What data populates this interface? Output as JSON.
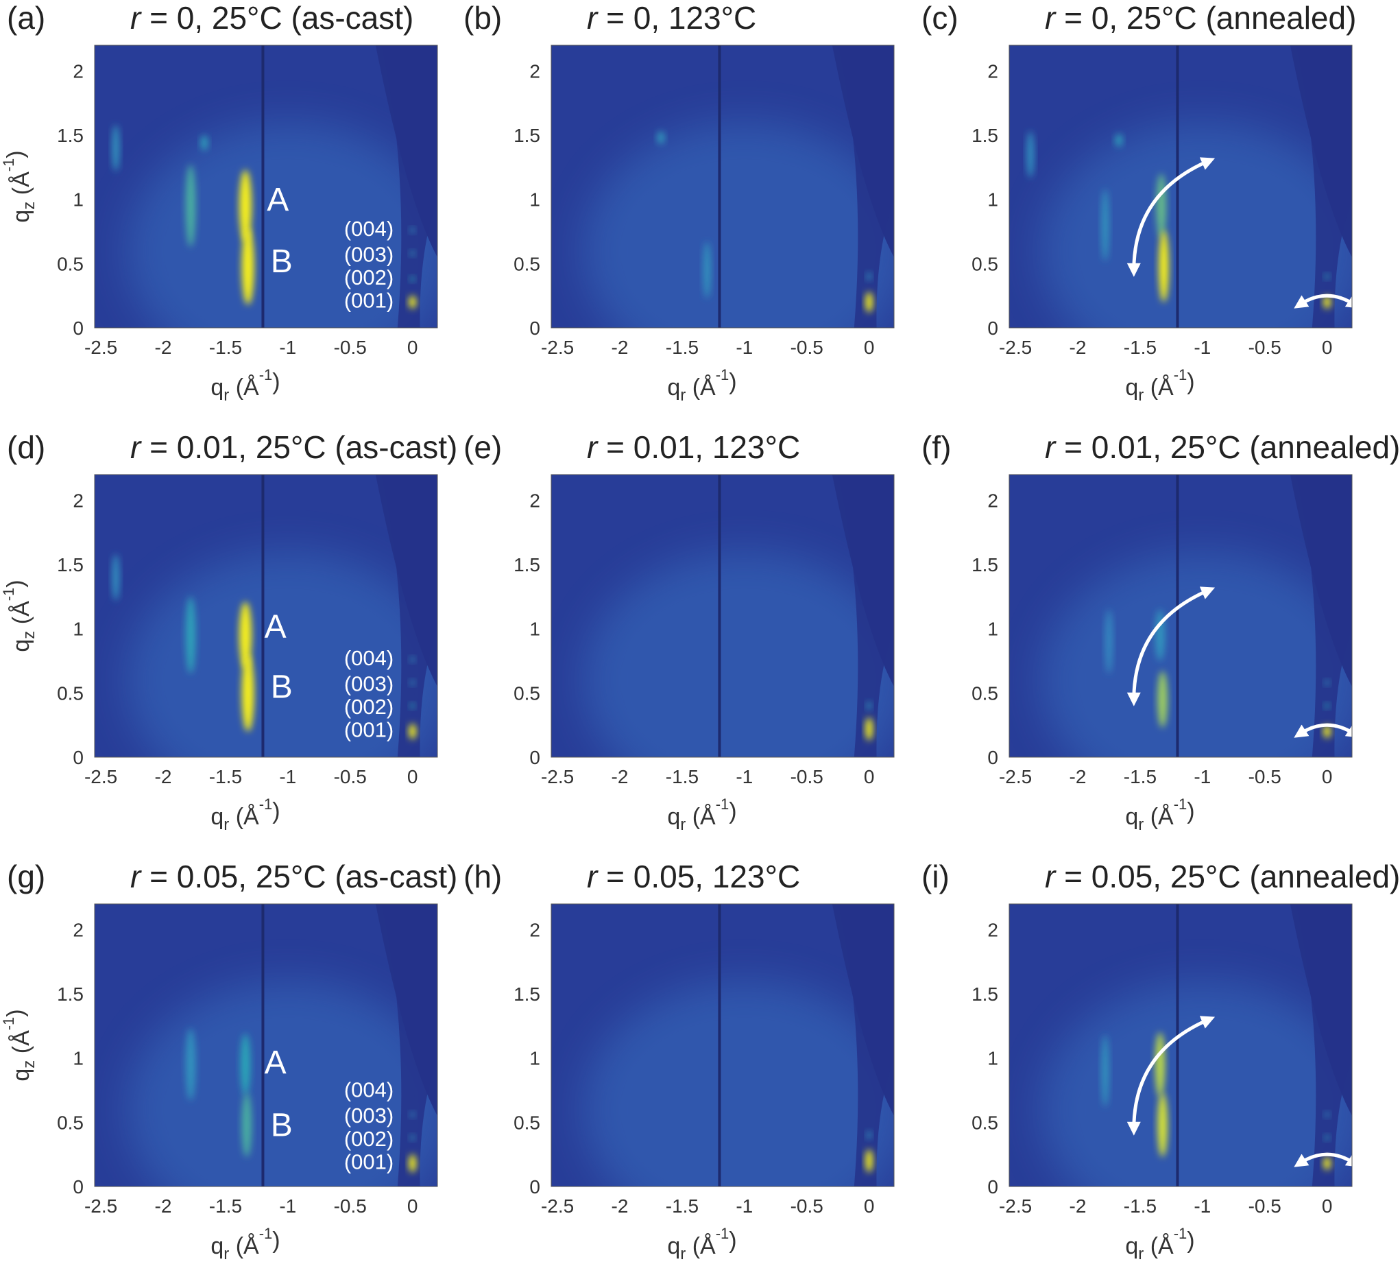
{
  "colors": {
    "background": "#283d98",
    "dark_region": "#24338a",
    "grid_line": "#1d2a6e",
    "low_intensity": "#3b78c8",
    "mid_intensity": "#2ba5b7",
    "high_intensity": "#f5ee1e",
    "annotation": "#ffffff"
  },
  "chart_data": [
    {
      "id": "a",
      "panel_label": "(a)",
      "title_var": "r",
      "title_rest": " = 0, 25°C (as-cast)",
      "type": "heatmap",
      "colormap": "viridis",
      "xlabel_base": "q",
      "xlabel_sub": "r",
      "xlabel_unit_open": " (Å",
      "xlabel_sup": "-1",
      "xlabel_unit_close": ")",
      "ylabel_base": "q",
      "ylabel_sub": "z",
      "ylabel_unit_open": " (Å",
      "ylabel_sup": "-1",
      "ylabel_unit_close": ")",
      "xlim": [
        -2.55,
        0.2
      ],
      "ylim": [
        0,
        2.2
      ],
      "xticks": [
        "-2.5",
        "-2",
        "-1.5",
        "-1",
        "-0.5",
        "0"
      ],
      "yticks": [
        "0",
        "0.5",
        "1",
        "1.5",
        "2"
      ],
      "peaks": [
        {
          "x": -1.78,
          "y": 0.95,
          "intensity": 0.55,
          "rx": 0.04,
          "ry": 0.32
        },
        {
          "x": -1.34,
          "y": 0.95,
          "intensity": 1.0,
          "rx": 0.05,
          "ry": 0.28
        },
        {
          "x": -1.32,
          "y": 0.48,
          "intensity": 1.0,
          "rx": 0.05,
          "ry": 0.3
        },
        {
          "x": -2.38,
          "y": 1.4,
          "intensity": 0.3,
          "rx": 0.03,
          "ry": 0.18
        },
        {
          "x": -1.67,
          "y": 1.44,
          "intensity": 0.4,
          "rx": 0.03,
          "ry": 0.06
        },
        {
          "x": 0,
          "y": 0.2,
          "intensity": 1.0,
          "rx": 0.03,
          "ry": 0.05
        },
        {
          "x": 0,
          "y": 0.38,
          "intensity": 0.5,
          "rx": 0.02,
          "ry": 0.02
        },
        {
          "x": 0,
          "y": 0.58,
          "intensity": 0.35,
          "rx": 0.02,
          "ry": 0.02
        },
        {
          "x": 0,
          "y": 0.76,
          "intensity": 0.3,
          "rx": 0.02,
          "ry": 0.02
        }
      ],
      "peak_labels": [
        {
          "text": "A",
          "x": -1.08,
          "y": 0.98
        },
        {
          "text": "B",
          "x": -1.05,
          "y": 0.5
        }
      ],
      "order_labels": [
        {
          "text": "(004)",
          "x": -0.35,
          "y": 0.76
        },
        {
          "text": "(003)",
          "x": -0.35,
          "y": 0.56
        },
        {
          "text": "(002)",
          "x": -0.35,
          "y": 0.38
        },
        {
          "text": "(001)",
          "x": -0.35,
          "y": 0.2
        }
      ],
      "arrows": false
    },
    {
      "id": "b",
      "panel_label": "(b)",
      "title_var": "r",
      "title_rest": " = 0, 123°C",
      "type": "heatmap",
      "colormap": "viridis",
      "xlabel_base": "q",
      "xlabel_sub": "r",
      "xlabel_unit_open": " (Å",
      "xlabel_sup": "-1",
      "xlabel_unit_close": ")",
      "ylabel_base": "",
      "ylabel_sub": "",
      "ylabel_unit_open": "",
      "ylabel_sup": "",
      "ylabel_unit_close": "",
      "xlim": [
        -2.55,
        0.2
      ],
      "ylim": [
        0,
        2.2
      ],
      "xticks": [
        "-2.5",
        "-2",
        "-1.5",
        "-1",
        "-0.5",
        "0"
      ],
      "yticks": [
        "0",
        "0.5",
        "1",
        "1.5",
        "2"
      ],
      "peaks": [
        {
          "x": -1.3,
          "y": 0.45,
          "intensity": 0.3,
          "rx": 0.03,
          "ry": 0.22
        },
        {
          "x": -1.67,
          "y": 1.48,
          "intensity": 0.35,
          "rx": 0.03,
          "ry": 0.05
        },
        {
          "x": 0,
          "y": 0.2,
          "intensity": 1.0,
          "rx": 0.03,
          "ry": 0.08
        },
        {
          "x": 0,
          "y": 0.4,
          "intensity": 0.3,
          "rx": 0.02,
          "ry": 0.03
        }
      ],
      "peak_labels": [],
      "order_labels": [],
      "arrows": false
    },
    {
      "id": "c",
      "panel_label": "(c)",
      "title_var": "r",
      "title_rest": " = 0, 25°C (annealed)",
      "type": "heatmap",
      "colormap": "viridis",
      "xlabel_base": "q",
      "xlabel_sub": "r",
      "xlabel_unit_open": " (Å",
      "xlabel_sup": "-1",
      "xlabel_unit_close": ")",
      "ylabel_base": "",
      "ylabel_sub": "",
      "ylabel_unit_open": "",
      "ylabel_sup": "",
      "ylabel_unit_close": "",
      "xlim": [
        -2.55,
        0.2
      ],
      "ylim": [
        0,
        2.2
      ],
      "xticks": [
        "-2.5",
        "-2",
        "-1.5",
        "-1",
        "-0.5",
        "0"
      ],
      "yticks": [
        "0",
        "0.5",
        "1",
        "1.5",
        "2"
      ],
      "peaks": [
        {
          "x": -1.78,
          "y": 0.8,
          "intensity": 0.3,
          "rx": 0.03,
          "ry": 0.28
        },
        {
          "x": -1.33,
          "y": 0.95,
          "intensity": 0.6,
          "rx": 0.04,
          "ry": 0.25
        },
        {
          "x": -1.31,
          "y": 0.48,
          "intensity": 0.95,
          "rx": 0.04,
          "ry": 0.28
        },
        {
          "x": -2.38,
          "y": 1.35,
          "intensity": 0.25,
          "rx": 0.03,
          "ry": 0.18
        },
        {
          "x": -1.67,
          "y": 1.46,
          "intensity": 0.4,
          "rx": 0.03,
          "ry": 0.05
        },
        {
          "x": 0,
          "y": 0.2,
          "intensity": 1.0,
          "rx": 0.03,
          "ry": 0.05
        },
        {
          "x": 0,
          "y": 0.4,
          "intensity": 0.45,
          "rx": 0.02,
          "ry": 0.02
        }
      ],
      "peak_labels": [],
      "order_labels": [],
      "arrows": true
    },
    {
      "id": "d",
      "panel_label": "(d)",
      "title_var": "r",
      "title_rest": " = 0.01, 25°C (as-cast)",
      "type": "heatmap",
      "colormap": "viridis",
      "xlabel_base": "q",
      "xlabel_sub": "r",
      "xlabel_unit_open": " (Å",
      "xlabel_sup": "-1",
      "xlabel_unit_close": ")",
      "ylabel_base": "q",
      "ylabel_sub": "z",
      "ylabel_unit_open": " (Å",
      "ylabel_sup": "-1",
      "ylabel_unit_close": ")",
      "xlim": [
        -2.55,
        0.2
      ],
      "ylim": [
        0,
        2.2
      ],
      "xticks": [
        "-2.5",
        "-2",
        "-1.5",
        "-1",
        "-0.5",
        "0"
      ],
      "yticks": [
        "0",
        "0.5",
        "1",
        "1.5",
        "2"
      ],
      "peaks": [
        {
          "x": -1.78,
          "y": 0.95,
          "intensity": 0.45,
          "rx": 0.04,
          "ry": 0.3
        },
        {
          "x": -1.34,
          "y": 0.95,
          "intensity": 0.95,
          "rx": 0.05,
          "ry": 0.26
        },
        {
          "x": -1.32,
          "y": 0.5,
          "intensity": 1.0,
          "rx": 0.05,
          "ry": 0.3
        },
        {
          "x": -2.38,
          "y": 1.4,
          "intensity": 0.25,
          "rx": 0.03,
          "ry": 0.18
        },
        {
          "x": 0,
          "y": 0.2,
          "intensity": 1.0,
          "rx": 0.03,
          "ry": 0.06
        },
        {
          "x": 0,
          "y": 0.4,
          "intensity": 0.5,
          "rx": 0.02,
          "ry": 0.02
        },
        {
          "x": 0,
          "y": 0.58,
          "intensity": 0.3,
          "rx": 0.02,
          "ry": 0.02
        },
        {
          "x": 0,
          "y": 0.76,
          "intensity": 0.3,
          "rx": 0.02,
          "ry": 0.02
        }
      ],
      "peak_labels": [
        {
          "text": "A",
          "x": -1.1,
          "y": 1.0
        },
        {
          "text": "B",
          "x": -1.05,
          "y": 0.53
        }
      ],
      "order_labels": [
        {
          "text": "(004)",
          "x": -0.35,
          "y": 0.76
        },
        {
          "text": "(003)",
          "x": -0.35,
          "y": 0.56
        },
        {
          "text": "(002)",
          "x": -0.35,
          "y": 0.38
        },
        {
          "text": "(001)",
          "x": -0.35,
          "y": 0.2
        }
      ],
      "arrows": false
    },
    {
      "id": "e",
      "panel_label": "(e)",
      "title_var": "r",
      "title_rest": " = 0.01, 123°C",
      "type": "heatmap",
      "colormap": "viridis",
      "xlabel_base": "q",
      "xlabel_sub": "r",
      "xlabel_unit_open": " (Å",
      "xlabel_sup": "-1",
      "xlabel_unit_close": ")",
      "ylabel_base": "",
      "ylabel_sub": "",
      "ylabel_unit_open": "",
      "ylabel_sup": "",
      "ylabel_unit_close": "",
      "xlim": [
        -2.55,
        0.2
      ],
      "ylim": [
        0,
        2.2
      ],
      "xticks": [
        "-2.5",
        "-2",
        "-1.5",
        "-1",
        "-0.5",
        "0"
      ],
      "yticks": [
        "0",
        "0.5",
        "1",
        "1.5",
        "2"
      ],
      "peaks": [
        {
          "x": 0,
          "y": 0.22,
          "intensity": 1.0,
          "rx": 0.03,
          "ry": 0.09
        },
        {
          "x": 0,
          "y": 0.4,
          "intensity": 0.35,
          "rx": 0.02,
          "ry": 0.03
        }
      ],
      "peak_labels": [],
      "order_labels": [],
      "arrows": false
    },
    {
      "id": "f",
      "panel_label": "(f)",
      "title_var": "r",
      "title_rest": " = 0.01, 25°C (annealed)",
      "type": "heatmap",
      "colormap": "viridis",
      "xlabel_base": "q",
      "xlabel_sub": "r",
      "xlabel_unit_open": " (Å",
      "xlabel_sup": "-1",
      "xlabel_unit_close": ")",
      "ylabel_base": "",
      "ylabel_sub": "",
      "ylabel_unit_open": "",
      "ylabel_sup": "",
      "ylabel_unit_close": "",
      "xlim": [
        -2.55,
        0.2
      ],
      "ylim": [
        0,
        2.2
      ],
      "xticks": [
        "-2.5",
        "-2",
        "-1.5",
        "-1",
        "-0.5",
        "0"
      ],
      "yticks": [
        "0",
        "0.5",
        "1",
        "1.5",
        "2"
      ],
      "peaks": [
        {
          "x": -1.32,
          "y": 0.45,
          "intensity": 0.7,
          "rx": 0.04,
          "ry": 0.22
        },
        {
          "x": -1.34,
          "y": 0.95,
          "intensity": 0.3,
          "rx": 0.04,
          "ry": 0.2
        },
        {
          "x": -1.75,
          "y": 0.9,
          "intensity": 0.2,
          "rx": 0.03,
          "ry": 0.25
        },
        {
          "x": 0,
          "y": 0.2,
          "intensity": 1.0,
          "rx": 0.03,
          "ry": 0.05
        },
        {
          "x": 0,
          "y": 0.4,
          "intensity": 0.5,
          "rx": 0.02,
          "ry": 0.02
        },
        {
          "x": 0,
          "y": 0.58,
          "intensity": 0.3,
          "rx": 0.02,
          "ry": 0.02
        }
      ],
      "peak_labels": [],
      "order_labels": [],
      "arrows": true
    },
    {
      "id": "g",
      "panel_label": "(g)",
      "title_var": "r",
      "title_rest": " = 0.05, 25°C (as-cast)",
      "type": "heatmap",
      "colormap": "viridis",
      "xlabel_base": "q",
      "xlabel_sub": "r",
      "xlabel_unit_open": " (Å",
      "xlabel_sup": "-1",
      "xlabel_unit_close": ")",
      "ylabel_base": "q",
      "ylabel_sub": "z",
      "ylabel_unit_open": " (Å",
      "ylabel_sup": "-1",
      "ylabel_unit_close": ")",
      "xlim": [
        -2.55,
        0.2
      ],
      "ylim": [
        0,
        2.2
      ],
      "xticks": [
        "-2.5",
        "-2",
        "-1.5",
        "-1",
        "-0.5",
        "0"
      ],
      "yticks": [
        "0",
        "0.5",
        "1",
        "1.5",
        "2"
      ],
      "peaks": [
        {
          "x": -1.78,
          "y": 0.95,
          "intensity": 0.3,
          "rx": 0.04,
          "ry": 0.28
        },
        {
          "x": -1.34,
          "y": 0.95,
          "intensity": 0.5,
          "rx": 0.04,
          "ry": 0.24
        },
        {
          "x": -1.33,
          "y": 0.48,
          "intensity": 0.55,
          "rx": 0.04,
          "ry": 0.25
        },
        {
          "x": 0,
          "y": 0.18,
          "intensity": 1.0,
          "rx": 0.03,
          "ry": 0.07
        },
        {
          "x": 0,
          "y": 0.38,
          "intensity": 0.35,
          "rx": 0.02,
          "ry": 0.02
        },
        {
          "x": 0,
          "y": 0.56,
          "intensity": 0.25,
          "rx": 0.02,
          "ry": 0.02
        }
      ],
      "peak_labels": [
        {
          "text": "A",
          "x": -1.1,
          "y": 0.95
        },
        {
          "text": "B",
          "x": -1.05,
          "y": 0.46
        }
      ],
      "order_labels": [
        {
          "text": "(004)",
          "x": -0.35,
          "y": 0.74
        },
        {
          "text": "(003)",
          "x": -0.35,
          "y": 0.54
        },
        {
          "text": "(002)",
          "x": -0.35,
          "y": 0.36
        },
        {
          "text": "(001)",
          "x": -0.35,
          "y": 0.18
        }
      ],
      "arrows": false
    },
    {
      "id": "h",
      "panel_label": "(h)",
      "title_var": "r",
      "title_rest": " = 0.05, 123°C",
      "type": "heatmap",
      "colormap": "viridis",
      "xlabel_base": "q",
      "xlabel_sub": "r",
      "xlabel_unit_open": " (Å",
      "xlabel_sup": "-1",
      "xlabel_unit_close": ")",
      "ylabel_base": "",
      "ylabel_sub": "",
      "ylabel_unit_open": "",
      "ylabel_sup": "",
      "ylabel_unit_close": "",
      "xlim": [
        -2.55,
        0.2
      ],
      "ylim": [
        0,
        2.2
      ],
      "xticks": [
        "-2.5",
        "-2",
        "-1.5",
        "-1",
        "-0.5",
        "0"
      ],
      "yticks": [
        "0",
        "0.5",
        "1",
        "1.5",
        "2"
      ],
      "peaks": [
        {
          "x": 0,
          "y": 0.2,
          "intensity": 1.0,
          "rx": 0.03,
          "ry": 0.09
        },
        {
          "x": 0,
          "y": 0.4,
          "intensity": 0.3,
          "rx": 0.02,
          "ry": 0.03
        }
      ],
      "peak_labels": [],
      "order_labels": [],
      "arrows": false
    },
    {
      "id": "i",
      "panel_label": "(i)",
      "title_var": "r",
      "title_rest": " = 0.05, 25°C (annealed)",
      "type": "heatmap",
      "colormap": "viridis",
      "xlabel_base": "q",
      "xlabel_sub": "r",
      "xlabel_unit_open": " (Å",
      "xlabel_sup": "-1",
      "xlabel_unit_close": ")",
      "ylabel_base": "",
      "ylabel_sub": "",
      "ylabel_unit_open": "",
      "ylabel_sup": "",
      "ylabel_unit_close": "",
      "xlim": [
        -2.55,
        0.2
      ],
      "ylim": [
        0,
        2.2
      ],
      "xticks": [
        "-2.5",
        "-2",
        "-1.5",
        "-1",
        "-0.5",
        "0"
      ],
      "yticks": [
        "0",
        "0.5",
        "1",
        "1.5",
        "2"
      ],
      "peaks": [
        {
          "x": -1.78,
          "y": 0.9,
          "intensity": 0.3,
          "rx": 0.03,
          "ry": 0.28
        },
        {
          "x": -1.34,
          "y": 0.95,
          "intensity": 0.75,
          "rx": 0.04,
          "ry": 0.25
        },
        {
          "x": -1.32,
          "y": 0.48,
          "intensity": 0.8,
          "rx": 0.04,
          "ry": 0.25
        },
        {
          "x": 0,
          "y": 0.18,
          "intensity": 1.0,
          "rx": 0.03,
          "ry": 0.05
        },
        {
          "x": 0,
          "y": 0.38,
          "intensity": 0.4,
          "rx": 0.02,
          "ry": 0.02
        },
        {
          "x": 0,
          "y": 0.56,
          "intensity": 0.25,
          "rx": 0.02,
          "ry": 0.02
        }
      ],
      "peak_labels": [],
      "order_labels": [],
      "arrows": true
    }
  ]
}
